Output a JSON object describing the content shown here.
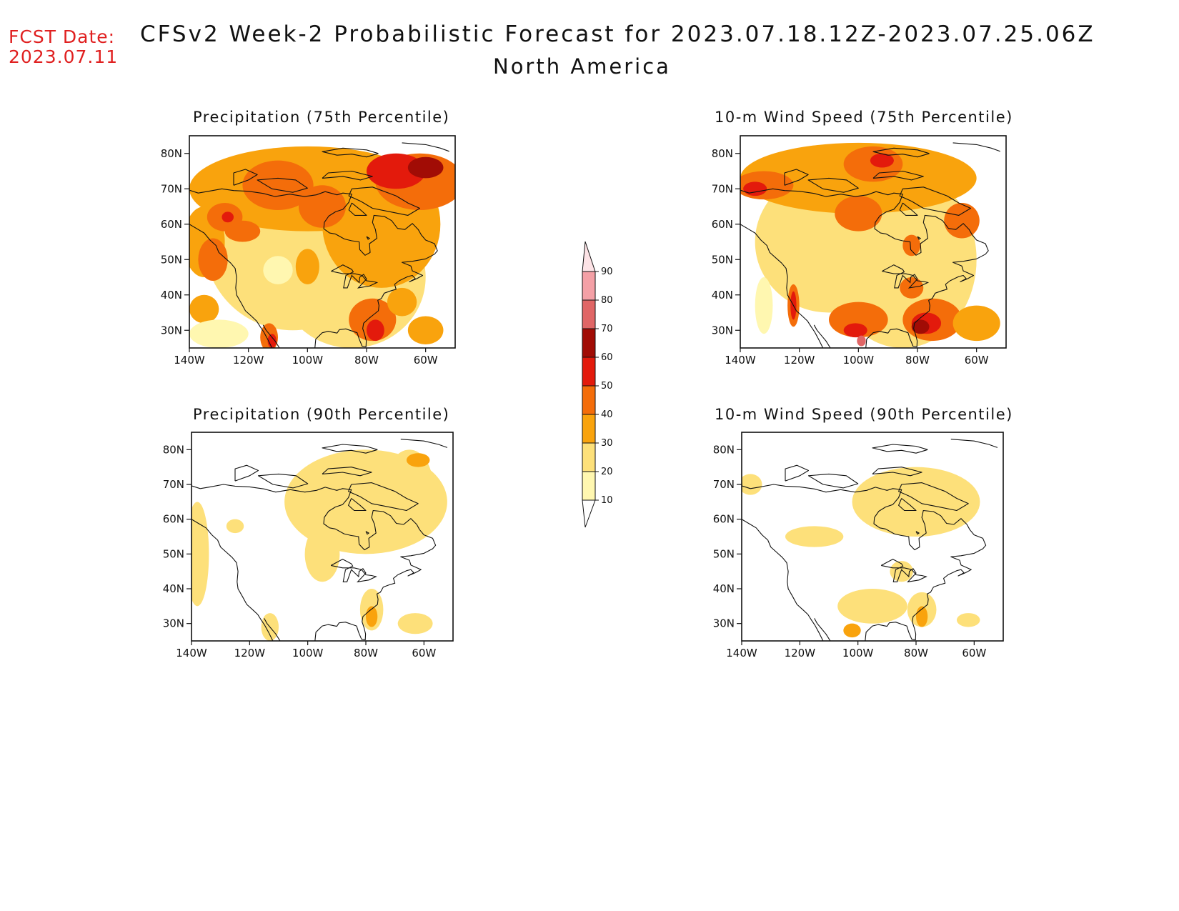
{
  "header": {
    "fcst_label": "FCST Date:",
    "fcst_date": "2023.07.11",
    "title": "CFSv2 Week-2 Probabilistic Forecast for 2023.07.18.12Z-2023.07.25.06Z",
    "subtitle": "North America"
  },
  "colors": {
    "shade_10_20": "#fff7b0",
    "shade_20_30": "#fde07a",
    "shade_30_40": "#f9a30d",
    "shade_40_50": "#f46d0a",
    "shade_50_60": "#e31a0c",
    "shade_60_70": "#a10c05",
    "shade_70_80": "#e06666",
    "shade_80_90": "#f4a0a6",
    "shade_90_100": "#fde3e6",
    "coast": "#111111"
  },
  "axes": {
    "lat_labels": [
      "80N",
      "70N",
      "60N",
      "50N",
      "40N",
      "30N"
    ],
    "lon_labels": [
      "140W",
      "120W",
      "100W",
      "80W",
      "60W"
    ]
  },
  "colorbar": {
    "levels": [
      "10",
      "20",
      "30",
      "40",
      "50",
      "60",
      "70",
      "80",
      "90"
    ]
  },
  "panels": [
    {
      "id": "precip75",
      "title": "Precipitation (75th Percentile)",
      "blobs": [
        {
          "lon": -105,
          "lat": 55,
          "rx": 30,
          "ry": 25,
          "c": 1
        },
        {
          "lon": -85,
          "lat": 45,
          "rx": 25,
          "ry": 20,
          "c": 1
        },
        {
          "lon": -100,
          "lat": 70,
          "rx": 40,
          "ry": 12,
          "c": 2
        },
        {
          "lon": -75,
          "lat": 60,
          "rx": 20,
          "ry": 18,
          "c": 2
        },
        {
          "lon": -62,
          "lat": 72,
          "rx": 15,
          "ry": 8,
          "c": 3
        },
        {
          "lon": -70,
          "lat": 75,
          "rx": 10,
          "ry": 5,
          "c": 4
        },
        {
          "lon": -60,
          "lat": 76,
          "rx": 6,
          "ry": 3,
          "c": 5
        },
        {
          "lon": -135,
          "lat": 55,
          "rx": 7,
          "ry": 10,
          "c": 2
        },
        {
          "lon": -132,
          "lat": 50,
          "rx": 5,
          "ry": 6,
          "c": 3
        },
        {
          "lon": -128,
          "lat": 62,
          "rx": 6,
          "ry": 4,
          "c": 3
        },
        {
          "lon": -127,
          "lat": 62,
          "rx": 2,
          "ry": 1.5,
          "c": 4
        },
        {
          "lon": -122,
          "lat": 58,
          "rx": 6,
          "ry": 3,
          "c": 3
        },
        {
          "lon": -110,
          "lat": 71,
          "rx": 12,
          "ry": 7,
          "c": 3
        },
        {
          "lon": -95,
          "lat": 65,
          "rx": 8,
          "ry": 6,
          "c": 3
        },
        {
          "lon": -100,
          "lat": 48,
          "rx": 4,
          "ry": 5,
          "c": 2
        },
        {
          "lon": -78,
          "lat": 33,
          "rx": 8,
          "ry": 6,
          "c": 3
        },
        {
          "lon": -77,
          "lat": 30,
          "rx": 3,
          "ry": 3,
          "c": 4
        },
        {
          "lon": -68,
          "lat": 38,
          "rx": 5,
          "ry": 4,
          "c": 2
        },
        {
          "lon": -113,
          "lat": 28,
          "rx": 3,
          "ry": 4,
          "c": 3
        },
        {
          "lon": -112,
          "lat": 27,
          "rx": 1.5,
          "ry": 2,
          "c": 4
        },
        {
          "lon": -135,
          "lat": 36,
          "rx": 5,
          "ry": 4,
          "c": 2
        },
        {
          "lon": -130,
          "lat": 29,
          "rx": 10,
          "ry": 4,
          "c": 0
        },
        {
          "lon": -110,
          "lat": 47,
          "rx": 5,
          "ry": 4,
          "c": 0
        },
        {
          "lon": -60,
          "lat": 30,
          "rx": 6,
          "ry": 4,
          "c": 2
        }
      ]
    },
    {
      "id": "wind75",
      "title": "10-m Wind Speed (75th Percentile)",
      "blobs": [
        {
          "lon": -110,
          "lat": 55,
          "rx": 25,
          "ry": 20,
          "c": 1
        },
        {
          "lon": -85,
          "lat": 50,
          "rx": 25,
          "ry": 25,
          "c": 1
        },
        {
          "lon": -100,
          "lat": 73,
          "rx": 40,
          "ry": 10,
          "c": 2
        },
        {
          "lon": -132,
          "lat": 71,
          "rx": 10,
          "ry": 4,
          "c": 3
        },
        {
          "lon": -135,
          "lat": 70,
          "rx": 4,
          "ry": 2,
          "c": 4
        },
        {
          "lon": -95,
          "lat": 77,
          "rx": 10,
          "ry": 5,
          "c": 3
        },
        {
          "lon": -92,
          "lat": 78,
          "rx": 4,
          "ry": 2,
          "c": 4
        },
        {
          "lon": -100,
          "lat": 63,
          "rx": 8,
          "ry": 5,
          "c": 3
        },
        {
          "lon": -65,
          "lat": 61,
          "rx": 6,
          "ry": 5,
          "c": 3
        },
        {
          "lon": -82,
          "lat": 54,
          "rx": 3,
          "ry": 3,
          "c": 3
        },
        {
          "lon": -75,
          "lat": 33,
          "rx": 10,
          "ry": 6,
          "c": 3
        },
        {
          "lon": -77,
          "lat": 32,
          "rx": 5,
          "ry": 3,
          "c": 4
        },
        {
          "lon": -79,
          "lat": 31,
          "rx": 3,
          "ry": 2,
          "c": 5
        },
        {
          "lon": -100,
          "lat": 33,
          "rx": 10,
          "ry": 5,
          "c": 3
        },
        {
          "lon": -101,
          "lat": 30,
          "rx": 4,
          "ry": 2,
          "c": 4
        },
        {
          "lon": -99,
          "lat": 27,
          "rx": 1.5,
          "ry": 1.5,
          "c": 6
        },
        {
          "lon": -122,
          "lat": 37,
          "rx": 2,
          "ry": 6,
          "c": 3
        },
        {
          "lon": -122,
          "lat": 37,
          "rx": 1,
          "ry": 4,
          "c": 4
        },
        {
          "lon": -132,
          "lat": 37,
          "rx": 3,
          "ry": 8,
          "c": 0
        },
        {
          "lon": -82,
          "lat": 42,
          "rx": 4,
          "ry": 3,
          "c": 3
        },
        {
          "lon": -60,
          "lat": 32,
          "rx": 8,
          "ry": 5,
          "c": 2
        }
      ]
    },
    {
      "id": "precip90",
      "title": "Precipitation (90th Percentile)",
      "blobs": [
        {
          "lon": -80,
          "lat": 65,
          "rx": 28,
          "ry": 15,
          "c": 1
        },
        {
          "lon": -138,
          "lat": 50,
          "rx": 4,
          "ry": 15,
          "c": 1
        },
        {
          "lon": -95,
          "lat": 50,
          "rx": 6,
          "ry": 8,
          "c": 1
        },
        {
          "lon": -65,
          "lat": 70,
          "rx": 8,
          "ry": 10,
          "c": 1
        },
        {
          "lon": -78,
          "lat": 34,
          "rx": 4,
          "ry": 6,
          "c": 1
        },
        {
          "lon": -78,
          "lat": 32,
          "rx": 2,
          "ry": 3,
          "c": 2
        },
        {
          "lon": -63,
          "lat": 30,
          "rx": 6,
          "ry": 3,
          "c": 1
        },
        {
          "lon": -113,
          "lat": 29,
          "rx": 3,
          "ry": 4,
          "c": 1
        },
        {
          "lon": -125,
          "lat": 58,
          "rx": 3,
          "ry": 2,
          "c": 1
        },
        {
          "lon": -62,
          "lat": 77,
          "rx": 4,
          "ry": 2,
          "c": 2
        }
      ]
    },
    {
      "id": "wind90",
      "title": "10-m Wind Speed (90th Percentile)",
      "blobs": [
        {
          "lon": -80,
          "lat": 65,
          "rx": 22,
          "ry": 10,
          "c": 1
        },
        {
          "lon": -137,
          "lat": 70,
          "rx": 4,
          "ry": 3,
          "c": 1
        },
        {
          "lon": -115,
          "lat": 55,
          "rx": 10,
          "ry": 3,
          "c": 1
        },
        {
          "lon": -95,
          "lat": 35,
          "rx": 12,
          "ry": 5,
          "c": 1
        },
        {
          "lon": -78,
          "lat": 34,
          "rx": 5,
          "ry": 5,
          "c": 1
        },
        {
          "lon": -78,
          "lat": 32,
          "rx": 2,
          "ry": 3,
          "c": 2
        },
        {
          "lon": -102,
          "lat": 28,
          "rx": 3,
          "ry": 2,
          "c": 2
        },
        {
          "lon": -85,
          "lat": 45,
          "rx": 4,
          "ry": 3,
          "c": 1
        },
        {
          "lon": -62,
          "lat": 31,
          "rx": 4,
          "ry": 2,
          "c": 1
        }
      ]
    }
  ]
}
